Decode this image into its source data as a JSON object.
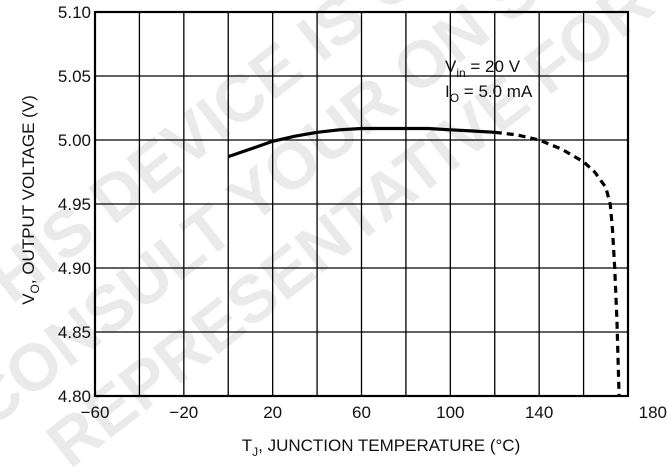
{
  "chart_data": {
    "type": "line",
    "xlabel": {
      "main": "T",
      "sub": "J",
      "rest": ", JUNCTION TEMPERATURE (°C)"
    },
    "ylabel": {
      "main": "V",
      "sub": "O",
      "rest": ", OUTPUT VOLTAGE (V)"
    },
    "xlim": [
      -60,
      180
    ],
    "ylim": [
      4.8,
      5.1
    ],
    "x_ticks": [
      -60,
      -40,
      -20,
      0,
      20,
      40,
      60,
      80,
      100,
      120,
      140,
      160,
      180
    ],
    "x_tick_labels": [
      "−60",
      "",
      "−20",
      "",
      "20",
      "",
      "60",
      "",
      "100",
      "",
      "140",
      "",
      "180"
    ],
    "y_ticks": [
      4.8,
      4.85,
      4.9,
      4.95,
      5.0,
      5.05,
      5.1
    ],
    "y_tick_labels": [
      "4.80",
      "4.85",
      "4.90",
      "4.95",
      "5.00",
      "5.05",
      "5.10"
    ],
    "grid": true,
    "annotations": [
      {
        "main": "V",
        "sub": "in",
        "rest": " = 20 V"
      },
      {
        "main": "I",
        "sub": "O",
        "rest": " = 5.0 mA"
      }
    ],
    "series": [
      {
        "style": "solid",
        "x": [
          0,
          10,
          20,
          30,
          40,
          50,
          60,
          70,
          80,
          90,
          100,
          110,
          120
        ],
        "y": [
          4.987,
          4.993,
          4.999,
          5.003,
          5.006,
          5.008,
          5.009,
          5.009,
          5.009,
          5.009,
          5.008,
          5.007,
          5.006
        ]
      },
      {
        "style": "dashed",
        "x": [
          120,
          130,
          140,
          150,
          160,
          165,
          170,
          172,
          173,
          174,
          175,
          175.5,
          176
        ],
        "y": [
          5.006,
          5.004,
          5.0,
          4.993,
          4.983,
          4.975,
          4.963,
          4.95,
          4.93,
          4.9,
          4.86,
          4.83,
          4.8
        ]
      }
    ],
    "watermark": [
      "THIS DEVICE IS OBSOLETE",
      "CONSULT YOUR ON SEMICONDUCTOR",
      "REPRESENTATIVE FOR INFORMATION"
    ]
  }
}
